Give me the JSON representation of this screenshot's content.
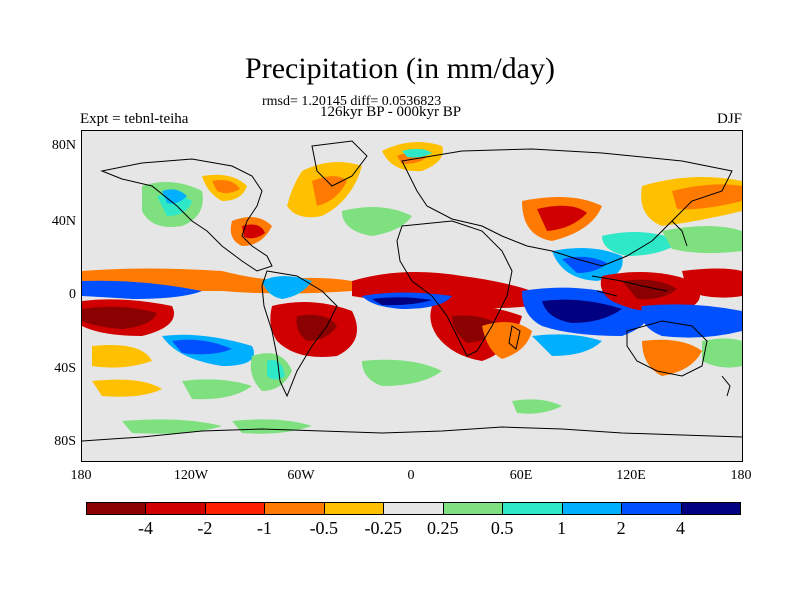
{
  "title": "Precipitation (in mm/day)",
  "stats": "rmsd= 1.20145 diff= 0.0536823",
  "period": "126kyr BP - 000kyr BP",
  "experiment": "Expt = tebnl-teiha",
  "season": "DJF",
  "y_ticks": [
    "80N",
    "40N",
    "0",
    "40S",
    "80S"
  ],
  "x_ticks": [
    "180",
    "120W",
    "60W",
    "0",
    "60E",
    "120E",
    "180"
  ],
  "colorbar": {
    "labels": [
      "-4",
      "-2",
      "-1",
      "-0.5",
      "-0.25",
      "0.25",
      "0.5",
      "1",
      "2",
      "4"
    ],
    "colors": [
      "#8b0000",
      "#d00000",
      "#ff2000",
      "#ff7a00",
      "#ffc000",
      "#e6e6e6",
      "#7fe07f",
      "#2ee8c8",
      "#00b0ff",
      "#0050ff",
      "#000080"
    ]
  },
  "colors": {
    "background": "#e6e6e6",
    "coastline": "#000000"
  }
}
